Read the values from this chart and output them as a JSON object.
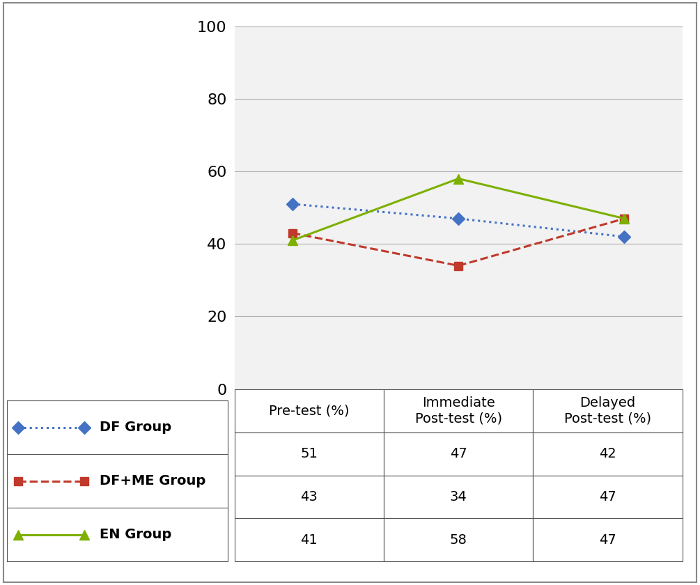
{
  "x_positions": [
    0,
    1,
    2
  ],
  "series": [
    {
      "label": "DF Group",
      "values": [
        51,
        47,
        42
      ],
      "color": "#4472C4",
      "linestyle": "dotted",
      "marker": "D",
      "markersize": 9,
      "linewidth": 2.2
    },
    {
      "label": "DF+ME Group",
      "values": [
        43,
        34,
        47
      ],
      "color": "#C0392B",
      "linestyle": "dashed",
      "marker": "s",
      "markersize": 9,
      "linewidth": 2.2
    },
    {
      "label": "EN Group",
      "values": [
        41,
        58,
        47
      ],
      "color": "#7DB000",
      "linestyle": "solid",
      "marker": "^",
      "markersize": 10,
      "linewidth": 2.2
    }
  ],
  "ylim": [
    0,
    100
  ],
  "yticks": [
    0,
    20,
    40,
    60,
    80,
    100
  ],
  "col_headers": [
    "Pre-test (%)",
    "Immediate\nPost-test (%)",
    "Delayed\nPost-test (%)"
  ],
  "table_values": [
    [
      "51",
      "47",
      "42"
    ],
    [
      "43",
      "34",
      "47"
    ],
    [
      "41",
      "58",
      "47"
    ]
  ],
  "bg_color": "#ffffff",
  "plot_bg": "#f2f2f2",
  "grid_color": "#b0b0b0",
  "border_color": "#888888",
  "ytick_fontsize": 16,
  "table_fontsize": 14,
  "legend_fontsize": 14
}
